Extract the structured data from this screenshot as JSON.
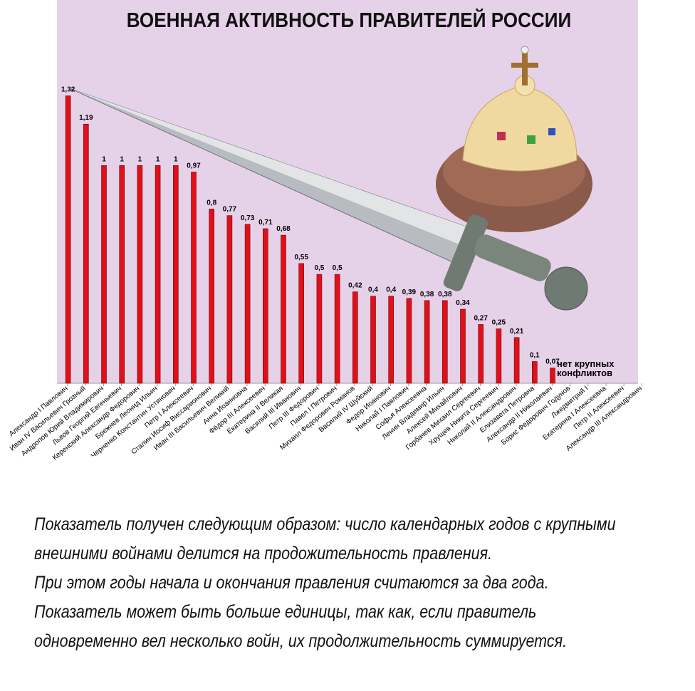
{
  "chart_data": {
    "type": "bar",
    "title": "ВОЕННАЯ АКТИВНОСТЬ ПРАВИТЕЛЕЙ РОССИИ",
    "categories": [
      "Александр I Павлович",
      "Иван IV Васильевич Грозный",
      "Андропов Юрий Владимирович",
      "Львов Георгий Евгеньевич",
      "Керенский Александр Федорович",
      "Брежнев Леонид Ильич",
      "Черненко Константин Устинович",
      "Петр I Алексеевич",
      "Сталин Иосиф Виссарионович",
      "Иван III Васильевич Великий",
      "Анна Иоанновна",
      "Фёдор III Алексеевич",
      "Екатерина II Великая",
      "Василий III Иванович",
      "Петр III Федорович",
      "Павел I Петрович",
      "Михаил Федорович Романов",
      "Василий IV Шуйский",
      "Федор Иоанович",
      "Николай I Павлович",
      "Софья Алексеевна",
      "Ленин Владимир Ильич",
      "Алексей Михайлович",
      "Горбачев Михаил Сергеевич",
      "Хрущев Никита Сергеевич",
      "Николай II Александрович",
      "Елизавета Петровна",
      "Александр II Николаевич",
      "Борис Федорович Годунов",
      "Лжедмитрий I",
      "Екатерина I Алексеевна",
      "Петр II Алексеевич",
      "Александр III Александрович"
    ],
    "values": [
      1.32,
      1.19,
      1,
      1,
      1,
      1,
      1,
      0.97,
      0.8,
      0.77,
      0.73,
      0.71,
      0.68,
      0.55,
      0.5,
      0.5,
      0.42,
      0.4,
      0.4,
      0.39,
      0.38,
      0.38,
      0.34,
      0.27,
      0.25,
      0.21,
      0.1,
      0.07,
      null,
      null,
      null,
      null,
      null
    ],
    "value_labels": [
      "1,32",
      "1,19",
      "1",
      "1",
      "1",
      "1",
      "1",
      "0,97",
      "0,8",
      "0,77",
      "0,73",
      "0,71",
      "0,68",
      "0,55",
      "0,5",
      "0,5",
      "0,42",
      "0,4",
      "0,4",
      "0,39",
      "0,38",
      "0,38",
      "0,34",
      "0,27",
      "0,25",
      "0,21",
      "0,1",
      "0,07",
      null,
      null,
      null,
      null,
      null
    ],
    "color": "#e0101a",
    "ylim": [
      0,
      1.76
    ],
    "annotation": [
      "нет крупных",
      "конфликтов"
    ],
    "notes": [
      "Показатель получен следующим образом: число календарных годов с крупными",
      "внешними войнами делится на продожительность правления.",
      "При этом годы начала и окончания правления считаются за два года.",
      "Показатель может быть больше единицы, так как, если правитель",
      "одновременно вел несколько войн, их продолжительность суммируется."
    ]
  }
}
